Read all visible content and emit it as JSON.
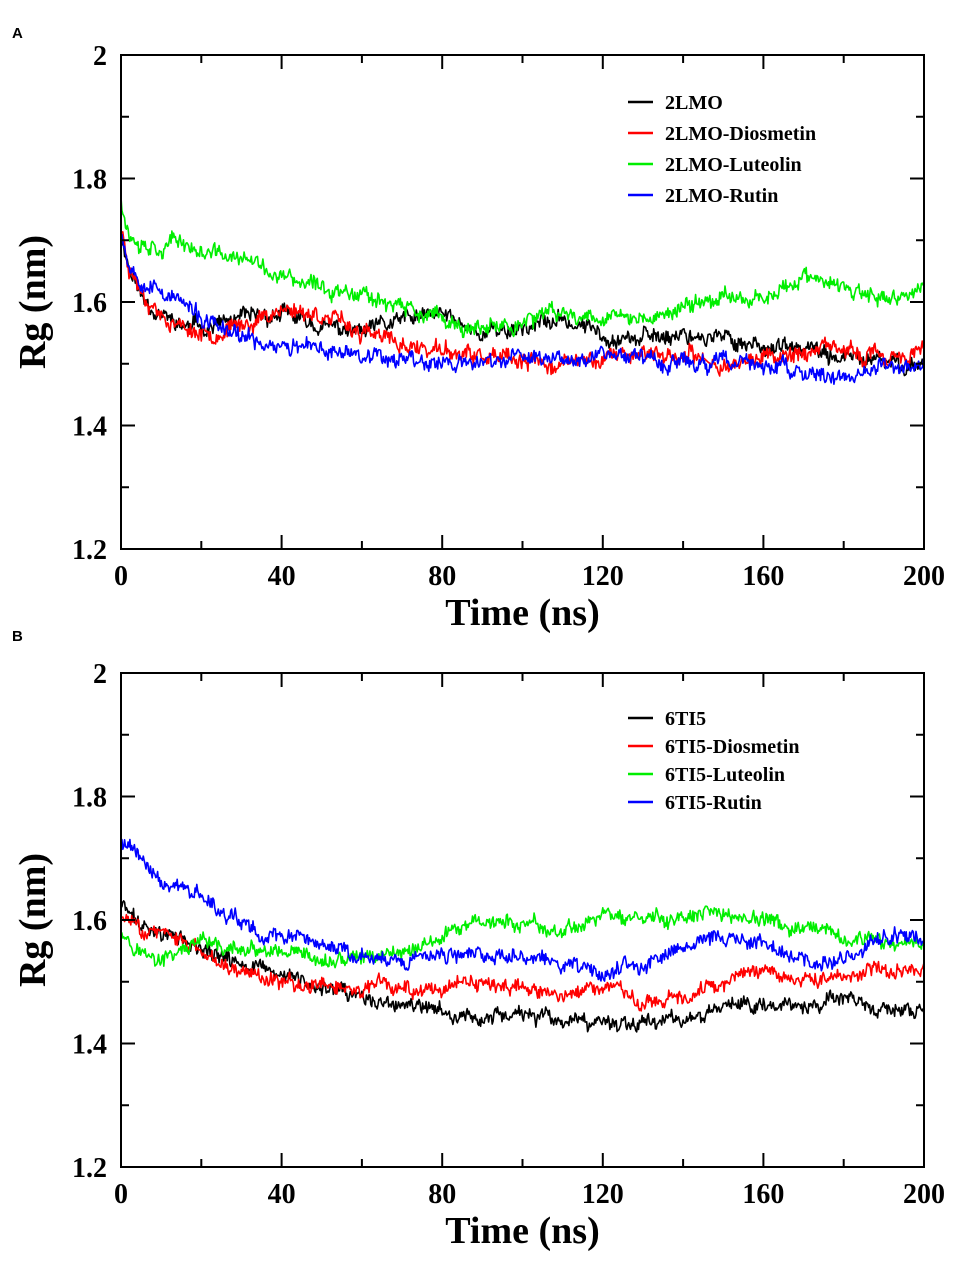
{
  "figure": {
    "panels": [
      {
        "letter": "A"
      },
      {
        "letter": "B"
      }
    ]
  },
  "chart_data": [
    {
      "type": "line",
      "panel": "A",
      "title": "",
      "xlabel": "Time (ns)",
      "ylabel": "Rg (nm)",
      "xlim": [
        0,
        200
      ],
      "ylim": [
        1.2,
        2.0
      ],
      "xticks": [
        0,
        40,
        80,
        120,
        160,
        200
      ],
      "yticks": [
        1.2,
        1.4,
        1.6,
        1.8,
        2.0
      ],
      "xtick_labels": [
        "0",
        "40",
        "80",
        "120",
        "160",
        "200"
      ],
      "ytick_labels": [
        "1.2",
        "1.4",
        "1.6",
        "1.8",
        "2"
      ],
      "legend_position": "top-right",
      "noise": 0.012,
      "x": [
        0,
        2,
        5,
        10,
        15,
        20,
        30,
        40,
        50,
        60,
        70,
        80,
        90,
        100,
        110,
        120,
        130,
        140,
        150,
        160,
        170,
        180,
        190,
        200
      ],
      "series": [
        {
          "name": "2LMO",
          "color": "#000000",
          "seed": 11,
          "values": [
            1.71,
            1.66,
            1.61,
            1.58,
            1.56,
            1.56,
            1.57,
            1.58,
            1.56,
            1.55,
            1.57,
            1.58,
            1.55,
            1.56,
            1.57,
            1.55,
            1.54,
            1.55,
            1.54,
            1.53,
            1.52,
            1.51,
            1.5,
            1.5
          ]
        },
        {
          "name": "2LMO-Diosmetin",
          "color": "#ff0000",
          "seed": 23,
          "values": [
            1.72,
            1.66,
            1.62,
            1.58,
            1.56,
            1.55,
            1.56,
            1.59,
            1.58,
            1.55,
            1.53,
            1.52,
            1.51,
            1.5,
            1.5,
            1.51,
            1.52,
            1.51,
            1.5,
            1.51,
            1.52,
            1.52,
            1.51,
            1.52
          ]
        },
        {
          "name": "2LMO-Luteolin",
          "color": "#00ee00",
          "seed": 37,
          "values": [
            1.77,
            1.71,
            1.7,
            1.69,
            1.7,
            1.68,
            1.67,
            1.64,
            1.62,
            1.62,
            1.59,
            1.57,
            1.55,
            1.57,
            1.58,
            1.58,
            1.57,
            1.59,
            1.61,
            1.61,
            1.64,
            1.62,
            1.6,
            1.62
          ]
        },
        {
          "name": "2LMO-Rutin",
          "color": "#0000ff",
          "seed": 53,
          "values": [
            1.72,
            1.66,
            1.64,
            1.62,
            1.6,
            1.57,
            1.54,
            1.53,
            1.52,
            1.52,
            1.51,
            1.5,
            1.5,
            1.51,
            1.51,
            1.52,
            1.51,
            1.5,
            1.5,
            1.5,
            1.48,
            1.48,
            1.49,
            1.5
          ]
        }
      ]
    },
    {
      "type": "line",
      "panel": "B",
      "title": "",
      "xlabel": "Time (ns)",
      "ylabel": "Rg (nm)",
      "xlim": [
        0,
        200
      ],
      "ylim": [
        1.2,
        2.0
      ],
      "xticks": [
        0,
        40,
        80,
        120,
        160,
        200
      ],
      "yticks": [
        1.2,
        1.4,
        1.6,
        1.8,
        2.0
      ],
      "xtick_labels": [
        "0",
        "40",
        "80",
        "120",
        "160",
        "200"
      ],
      "ytick_labels": [
        "1.2",
        "1.4",
        "1.6",
        "1.8",
        "2"
      ],
      "legend_position": "top-right",
      "noise": 0.011,
      "x": [
        0,
        2,
        5,
        10,
        15,
        20,
        30,
        40,
        50,
        60,
        70,
        80,
        90,
        100,
        110,
        120,
        130,
        140,
        150,
        160,
        170,
        180,
        190,
        200
      ],
      "series": [
        {
          "name": "6TI5",
          "color": "#000000",
          "seed": 71,
          "values": [
            1.63,
            1.61,
            1.59,
            1.58,
            1.57,
            1.55,
            1.53,
            1.51,
            1.49,
            1.47,
            1.46,
            1.45,
            1.44,
            1.45,
            1.43,
            1.43,
            1.44,
            1.44,
            1.46,
            1.47,
            1.46,
            1.47,
            1.45,
            1.45
          ]
        },
        {
          "name": "6TI5-Diosmetin",
          "color": "#ff0000",
          "seed": 83,
          "values": [
            1.6,
            1.6,
            1.59,
            1.58,
            1.56,
            1.55,
            1.52,
            1.5,
            1.49,
            1.49,
            1.49,
            1.49,
            1.49,
            1.49,
            1.48,
            1.49,
            1.47,
            1.48,
            1.5,
            1.52,
            1.51,
            1.51,
            1.52,
            1.52
          ]
        },
        {
          "name": "6TI5-Luteolin",
          "color": "#00ee00",
          "seed": 97,
          "values": [
            1.59,
            1.57,
            1.55,
            1.53,
            1.55,
            1.56,
            1.55,
            1.54,
            1.53,
            1.54,
            1.55,
            1.57,
            1.6,
            1.59,
            1.58,
            1.61,
            1.6,
            1.6,
            1.61,
            1.6,
            1.58,
            1.57,
            1.56,
            1.57
          ]
        },
        {
          "name": "6TI5-Rutin",
          "color": "#0000ff",
          "seed": 109,
          "values": [
            1.73,
            1.72,
            1.7,
            1.66,
            1.65,
            1.64,
            1.59,
            1.57,
            1.56,
            1.54,
            1.53,
            1.54,
            1.55,
            1.55,
            1.53,
            1.52,
            1.53,
            1.55,
            1.57,
            1.56,
            1.53,
            1.54,
            1.57,
            1.57
          ]
        }
      ]
    }
  ]
}
